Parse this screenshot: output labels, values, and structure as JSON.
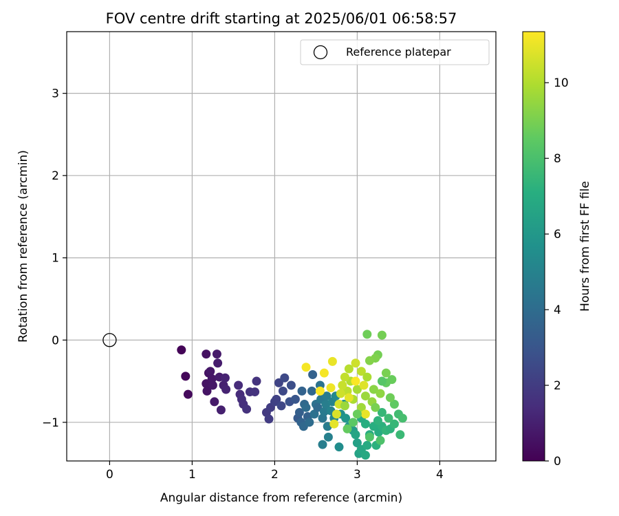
{
  "chart_data": {
    "type": "scatter",
    "title": "FOV centre drift starting at 2025/06/01 06:58:57",
    "xlabel": "Angular distance from reference (arcmin)",
    "ylabel": "Rotation from reference (arcmin)",
    "xlim": [
      -0.52,
      4.68
    ],
    "ylim": [
      -1.47,
      3.75
    ],
    "xticks": [
      0,
      1,
      2,
      3,
      4
    ],
    "yticks": [
      -1,
      0,
      1,
      2,
      3
    ],
    "grid": true,
    "legend": {
      "placement": "top-right",
      "entries": [
        "Reference platepar"
      ]
    },
    "reference_point": {
      "name": "Reference platepar",
      "x": 0,
      "y": 0
    },
    "colorbar": {
      "label": "Hours from first FF file",
      "colormap": "viridis",
      "range": [
        0,
        11.35
      ],
      "ticks": [
        0,
        2,
        4,
        6,
        8,
        10
      ]
    },
    "series": [
      {
        "marker": "filled-circle",
        "points": [
          {
            "x": 0.87,
            "y": -0.12,
            "c": 0.1
          },
          {
            "x": 0.92,
            "y": -0.44,
            "c": 0.2
          },
          {
            "x": 0.95,
            "y": -0.66,
            "c": 0.3
          },
          {
            "x": 1.17,
            "y": -0.17,
            "c": 0.5
          },
          {
            "x": 1.2,
            "y": -0.4,
            "c": 0.5
          },
          {
            "x": 1.17,
            "y": -0.53,
            "c": 0.6
          },
          {
            "x": 1.18,
            "y": -0.62,
            "c": 0.6
          },
          {
            "x": 1.22,
            "y": -0.38,
            "c": 0.7
          },
          {
            "x": 1.24,
            "y": -0.47,
            "c": 0.7
          },
          {
            "x": 1.27,
            "y": -0.75,
            "c": 0.8
          },
          {
            "x": 1.3,
            "y": -0.17,
            "c": 0.8
          },
          {
            "x": 1.31,
            "y": -0.28,
            "c": 0.9
          },
          {
            "x": 1.33,
            "y": -0.45,
            "c": 0.9
          },
          {
            "x": 1.35,
            "y": -0.85,
            "c": 1.0
          },
          {
            "x": 1.38,
            "y": -0.55,
            "c": 1.0
          },
          {
            "x": 1.4,
            "y": -0.46,
            "c": 1.1
          },
          {
            "x": 1.41,
            "y": -0.6,
            "c": 1.1
          },
          {
            "x": 1.25,
            "y": -0.55,
            "c": 0.7
          },
          {
            "x": 1.56,
            "y": -0.55,
            "c": 1.4
          },
          {
            "x": 1.58,
            "y": -0.66,
            "c": 1.4
          },
          {
            "x": 1.6,
            "y": -0.72,
            "c": 1.5
          },
          {
            "x": 1.62,
            "y": -0.78,
            "c": 1.5
          },
          {
            "x": 1.66,
            "y": -0.84,
            "c": 1.6
          },
          {
            "x": 1.7,
            "y": -0.63,
            "c": 1.6
          },
          {
            "x": 1.76,
            "y": -0.63,
            "c": 1.7
          },
          {
            "x": 1.78,
            "y": -0.5,
            "c": 1.7
          },
          {
            "x": 1.9,
            "y": -0.88,
            "c": 1.9
          },
          {
            "x": 1.93,
            "y": -0.96,
            "c": 2.0
          },
          {
            "x": 1.95,
            "y": -0.82,
            "c": 2.0
          },
          {
            "x": 2.0,
            "y": -0.75,
            "c": 2.2
          },
          {
            "x": 2.02,
            "y": -0.72,
            "c": 2.2
          },
          {
            "x": 2.05,
            "y": -0.52,
            "c": 2.3
          },
          {
            "x": 2.08,
            "y": -0.8,
            "c": 2.4
          },
          {
            "x": 2.1,
            "y": -0.62,
            "c": 2.5
          },
          {
            "x": 2.12,
            "y": -0.46,
            "c": 2.5
          },
          {
            "x": 2.2,
            "y": -0.55,
            "c": 2.7
          },
          {
            "x": 2.18,
            "y": -0.75,
            "c": 2.8
          },
          {
            "x": 2.25,
            "y": -0.72,
            "c": 3.0
          },
          {
            "x": 2.28,
            "y": -0.95,
            "c": 3.2
          },
          {
            "x": 2.3,
            "y": -0.88,
            "c": 3.4
          },
          {
            "x": 2.32,
            "y": -1.0,
            "c": 3.6
          },
          {
            "x": 2.33,
            "y": -0.62,
            "c": 3.6
          },
          {
            "x": 2.35,
            "y": -1.05,
            "c": 3.8
          },
          {
            "x": 2.36,
            "y": -0.78,
            "c": 3.8
          },
          {
            "x": 2.38,
            "y": -0.82,
            "c": 4.0
          },
          {
            "x": 2.4,
            "y": -0.93,
            "c": 3.5
          },
          {
            "x": 2.42,
            "y": -1.0,
            "c": 4.0
          },
          {
            "x": 2.45,
            "y": -0.62,
            "c": 3.8
          },
          {
            "x": 2.46,
            "y": -0.42,
            "c": 3.5
          },
          {
            "x": 2.48,
            "y": -0.9,
            "c": 4.2
          },
          {
            "x": 2.5,
            "y": -0.78,
            "c": 4.2
          },
          {
            "x": 2.52,
            "y": -0.82,
            "c": 3.9
          },
          {
            "x": 2.55,
            "y": -0.55,
            "c": 4.3
          },
          {
            "x": 2.56,
            "y": -0.72,
            "c": 4.5
          },
          {
            "x": 2.58,
            "y": -0.95,
            "c": 4.4
          },
          {
            "x": 2.6,
            "y": -0.87,
            "c": 4.6
          },
          {
            "x": 2.62,
            "y": -0.78,
            "c": 4.8
          },
          {
            "x": 2.63,
            "y": -0.68,
            "c": 4.7
          },
          {
            "x": 2.64,
            "y": -1.05,
            "c": 4.7
          },
          {
            "x": 2.65,
            "y": -1.18,
            "c": 4.9
          },
          {
            "x": 2.58,
            "y": -1.27,
            "c": 4.8
          },
          {
            "x": 2.68,
            "y": -0.86,
            "c": 5.0
          },
          {
            "x": 2.7,
            "y": -0.75,
            "c": 5.0
          },
          {
            "x": 2.72,
            "y": -0.95,
            "c": 5.2
          },
          {
            "x": 2.74,
            "y": -0.68,
            "c": 5.3
          },
          {
            "x": 2.78,
            "y": -1.3,
            "c": 5.5
          },
          {
            "x": 2.8,
            "y": -0.9,
            "c": 5.6
          },
          {
            "x": 2.84,
            "y": -0.78,
            "c": 5.7
          },
          {
            "x": 2.86,
            "y": -0.95,
            "c": 5.9
          },
          {
            "x": 2.9,
            "y": -1.05,
            "c": 6.0
          },
          {
            "x": 2.95,
            "y": -1.1,
            "c": 6.2
          },
          {
            "x": 3.0,
            "y": -1.25,
            "c": 6.4
          },
          {
            "x": 3.02,
            "y": -1.38,
            "c": 6.5
          },
          {
            "x": 3.05,
            "y": -1.33,
            "c": 6.7
          },
          {
            "x": 3.1,
            "y": -1.4,
            "c": 6.8
          },
          {
            "x": 3.12,
            "y": -1.28,
            "c": 6.9
          },
          {
            "x": 3.15,
            "y": -1.15,
            "c": 7.0
          },
          {
            "x": 3.2,
            "y": -1.05,
            "c": 7.1
          },
          {
            "x": 3.23,
            "y": -1.28,
            "c": 7.2
          },
          {
            "x": 3.26,
            "y": -1.12,
            "c": 7.0
          },
          {
            "x": 3.3,
            "y": -1.05,
            "c": 7.2
          },
          {
            "x": 3.35,
            "y": -1.1,
            "c": 7.4
          },
          {
            "x": 3.4,
            "y": -1.08,
            "c": 7.3
          },
          {
            "x": 3.45,
            "y": -1.02,
            "c": 7.5
          },
          {
            "x": 3.52,
            "y": -1.15,
            "c": 7.6
          },
          {
            "x": 3.5,
            "y": -0.9,
            "c": 7.8
          },
          {
            "x": 3.55,
            "y": -0.95,
            "c": 7.9
          },
          {
            "x": 3.38,
            "y": -0.95,
            "c": 7.7
          },
          {
            "x": 3.3,
            "y": -0.88,
            "c": 7.5
          },
          {
            "x": 3.25,
            "y": -0.98,
            "c": 7.3
          },
          {
            "x": 3.1,
            "y": -1.02,
            "c": 7.1
          },
          {
            "x": 3.05,
            "y": -0.95,
            "c": 6.9
          },
          {
            "x": 2.98,
            "y": -1.15,
            "c": 6.6
          },
          {
            "x": 3.45,
            "y": -0.78,
            "c": 8.5
          },
          {
            "x": 3.42,
            "y": -0.48,
            "c": 8.7
          },
          {
            "x": 3.35,
            "y": -0.52,
            "c": 8.6
          },
          {
            "x": 3.35,
            "y": -0.4,
            "c": 9.0
          },
          {
            "x": 3.25,
            "y": -0.18,
            "c": 8.9
          },
          {
            "x": 3.22,
            "y": -0.22,
            "c": 9.1
          },
          {
            "x": 3.12,
            "y": 0.07,
            "c": 8.8
          },
          {
            "x": 3.3,
            "y": 0.06,
            "c": 8.9
          },
          {
            "x": 3.15,
            "y": -0.25,
            "c": 9.2
          },
          {
            "x": 3.2,
            "y": -0.6,
            "c": 9.3
          },
          {
            "x": 3.18,
            "y": -0.75,
            "c": 9.5
          },
          {
            "x": 3.1,
            "y": -0.68,
            "c": 9.6
          },
          {
            "x": 3.05,
            "y": -0.82,
            "c": 9.7
          },
          {
            "x": 3.0,
            "y": -0.6,
            "c": 9.8
          },
          {
            "x": 2.95,
            "y": -0.72,
            "c": 9.9
          },
          {
            "x": 2.92,
            "y": -0.5,
            "c": 10.0
          },
          {
            "x": 2.9,
            "y": -0.35,
            "c": 10.1
          },
          {
            "x": 2.88,
            "y": -0.62,
            "c": 10.2
          },
          {
            "x": 2.85,
            "y": -0.45,
            "c": 10.3
          },
          {
            "x": 2.82,
            "y": -0.55,
            "c": 10.4
          },
          {
            "x": 2.8,
            "y": -0.65,
            "c": 10.5
          },
          {
            "x": 2.78,
            "y": -0.78,
            "c": 10.6
          },
          {
            "x": 2.75,
            "y": -0.9,
            "c": 10.7
          },
          {
            "x": 2.72,
            "y": -1.02,
            "c": 10.9
          },
          {
            "x": 2.7,
            "y": -0.26,
            "c": 11.0
          },
          {
            "x": 2.68,
            "y": -0.58,
            "c": 11.1
          },
          {
            "x": 2.6,
            "y": -0.4,
            "c": 11.2
          },
          {
            "x": 2.38,
            "y": -0.33,
            "c": 11.2
          },
          {
            "x": 2.55,
            "y": -0.62,
            "c": 11.3
          },
          {
            "x": 3.1,
            "y": -0.9,
            "c": 11.0
          },
          {
            "x": 2.98,
            "y": -0.28,
            "c": 10.5
          },
          {
            "x": 3.05,
            "y": -0.38,
            "c": 10.2
          },
          {
            "x": 3.12,
            "y": -0.45,
            "c": 9.9
          },
          {
            "x": 3.28,
            "y": -0.65,
            "c": 9.4
          },
          {
            "x": 3.22,
            "y": -0.82,
            "c": 9.0
          },
          {
            "x": 3.0,
            "y": -0.9,
            "c": 8.7
          },
          {
            "x": 2.95,
            "y": -1.0,
            "c": 8.4
          },
          {
            "x": 3.15,
            "y": -1.18,
            "c": 8.2
          },
          {
            "x": 3.28,
            "y": -1.22,
            "c": 8.1
          },
          {
            "x": 2.88,
            "y": -1.08,
            "c": 8.6
          },
          {
            "x": 3.3,
            "y": -0.5,
            "c": 8.3
          },
          {
            "x": 3.4,
            "y": -0.7,
            "c": 8.8
          },
          {
            "x": 2.85,
            "y": -0.8,
            "c": 9.6
          },
          {
            "x": 3.08,
            "y": -0.55,
            "c": 10.8
          },
          {
            "x": 2.98,
            "y": -0.5,
            "c": 11.3
          },
          {
            "x": 2.9,
            "y": -0.7,
            "c": 10.9
          }
        ]
      }
    ]
  }
}
